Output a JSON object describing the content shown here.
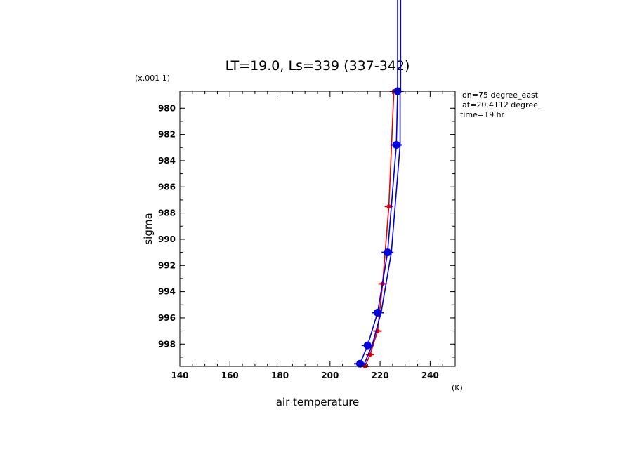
{
  "chart_data": {
    "type": "line",
    "title": "LT=19.0, Ls=339 (337-342)",
    "xlabel": "air temperature",
    "ylabel": "sigma",
    "x_unit": "(K)",
    "y_scale_note": "(x.001 1)",
    "xlim": [
      140,
      250
    ],
    "ylim": [
      999.7,
      978.7
    ],
    "x_ticks": [
      140,
      160,
      180,
      200,
      220,
      240
    ],
    "y_ticks": [
      980,
      982,
      984,
      986,
      988,
      990,
      992,
      994,
      996,
      998
    ],
    "annotations": [
      "lon=75 degree_east",
      "lat=20.4112 degree_",
      "time=19 hr"
    ],
    "series": [
      {
        "color": "#e00000",
        "marker": "small",
        "points": [
          [
            214,
            999.7
          ],
          [
            216,
            998.8
          ],
          [
            219,
            997.0
          ],
          [
            221,
            993.4
          ],
          [
            223.5,
            987.5
          ],
          [
            225.5,
            978.7
          ]
        ]
      },
      {
        "color": "#0000e0",
        "marker": "large",
        "points": [
          [
            212,
            999.5
          ],
          [
            215,
            998.1
          ],
          [
            219,
            995.6
          ],
          [
            223,
            991.0
          ],
          [
            226.5,
            982.8
          ],
          [
            227,
            978.7
          ]
        ]
      },
      {
        "color": "#0000e0",
        "marker": "none",
        "points": [
          [
            213.5,
            999.6
          ],
          [
            217,
            998.0
          ],
          [
            220.5,
            995.5
          ],
          [
            224.5,
            991.0
          ],
          [
            228,
            982.8
          ],
          [
            228,
            978.7
          ]
        ]
      }
    ]
  }
}
